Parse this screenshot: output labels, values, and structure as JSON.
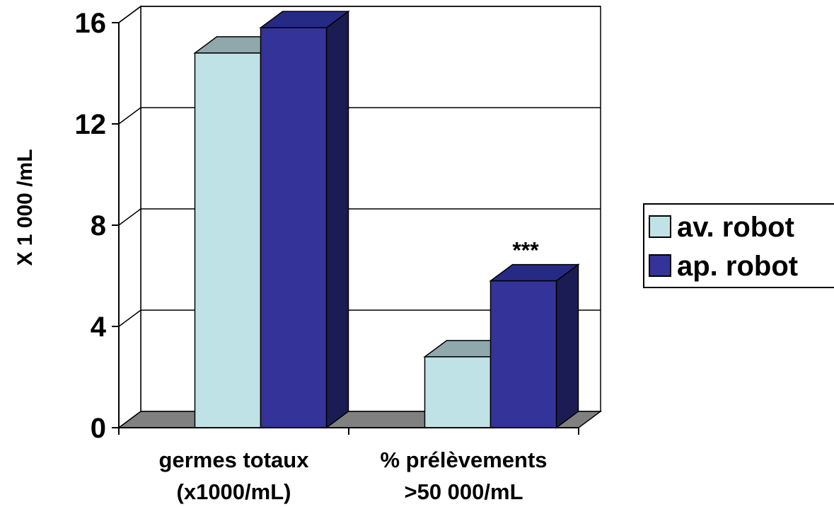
{
  "chart_data": {
    "type": "bar",
    "categories": [
      [
        "germes totaux",
        "(x1000/mL)"
      ],
      [
        "% prélèvements",
        ">50 000/mL"
      ]
    ],
    "series": [
      {
        "name": "av. robot",
        "values": [
          14.8,
          2.8
        ],
        "color": "#bfe2e6"
      },
      {
        "name": "ap. robot",
        "values": [
          15.8,
          5.8
        ],
        "color": "#333399"
      }
    ],
    "ylabel": "X 1 000 /mL",
    "ylim": [
      0,
      16
    ],
    "yticks": [
      0,
      4,
      8,
      12,
      16
    ],
    "grid": true,
    "three_d": true,
    "legend_position": "right",
    "annotations": [
      {
        "text": "***",
        "category_index": 1,
        "series_index": 1
      }
    ]
  }
}
